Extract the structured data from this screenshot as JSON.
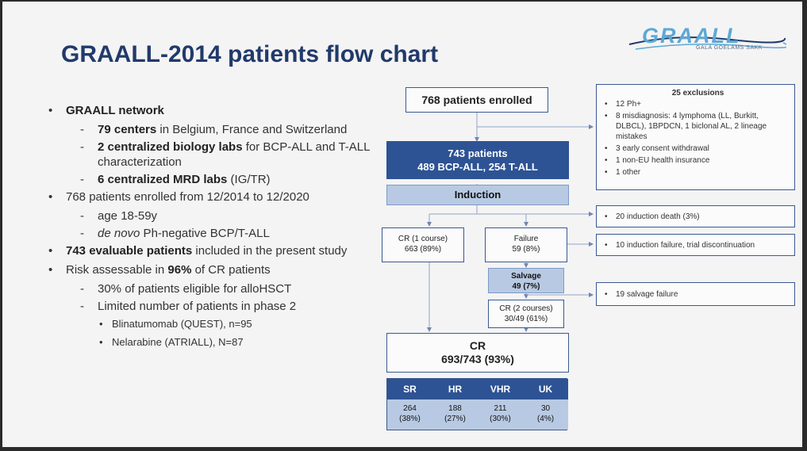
{
  "title": "GRAALL-2014 patients flow chart",
  "logo": {
    "name": "GRAALL",
    "subtitle": "GALA GOELAMS SAKK"
  },
  "bullets": [
    {
      "pre": "",
      "bold": "GRAALL network",
      "post": "",
      "children": [
        {
          "pre": "",
          "bold": "79 centers",
          "post": " in Belgium, France and Switzerland"
        },
        {
          "pre": "",
          "bold": "2 centralized biology labs",
          "post": " for BCP-ALL and T-ALL characterization"
        },
        {
          "pre": "",
          "bold": "6 centralized MRD labs",
          "post": " (IG/TR)"
        }
      ]
    },
    {
      "pre": "768 patients enrolled from 12/2014 to 12/2020",
      "bold": "",
      "post": "",
      "children": [
        {
          "pre": "age 18-59y",
          "bold": "",
          "post": ""
        },
        {
          "italic": "de novo",
          "post": " Ph-negative BCP/T-ALL"
        }
      ]
    },
    {
      "pre": "",
      "bold": "743 evaluable patients",
      "post": " included in the present study",
      "children": []
    },
    {
      "pre": "Risk assessable in ",
      "bold": "96%",
      "post": " of CR patients",
      "children": [
        {
          "pre": "30% of patients eligible for alloHSCT",
          "bold": "",
          "post": ""
        },
        {
          "pre": "Limited number of patients in phase 2",
          "bold": "",
          "post": "",
          "children": [
            "Blinatumomab (QUEST), n=95",
            "Nelarabine (ATRIALL), N=87"
          ]
        }
      ]
    }
  ],
  "flow": {
    "enrolled": "768 patients enrolled",
    "patients_line1": "743 patients",
    "patients_line2": "489 BCP-ALL, 254 T-ALL",
    "induction": "Induction",
    "cr1_line1": "CR (1 course)",
    "cr1_line2": "663 (89%)",
    "failure_line1": "Failure",
    "failure_line2": "59 (8%)",
    "salvage_line1": "Salvage",
    "salvage_line2": "49 (7%)",
    "cr2_line1": "CR (2 courses)",
    "cr2_line2": "30/49 (61%)",
    "cr_line1": "CR",
    "cr_line2": "693/743 (93%)"
  },
  "exclusions": {
    "title": "25 exclusions",
    "items": [
      "12 Ph+",
      "8 misdiagnosis: 4 lymphoma (LL, Burkitt, DLBCL), 1BPDCN, 1 biclonal AL, 2 lineage mistakes",
      "3 early consent withdrawal",
      "1 non-EU health insurance",
      "1 other"
    ]
  },
  "side_notes": {
    "induction_death": "20 induction death (3%)",
    "induction_failure": "10 induction failure, trial discontinuation",
    "salvage_failure": "19 salvage failure"
  },
  "risk_groups": [
    {
      "name": "SR",
      "count": "264",
      "pct": "(38%)"
    },
    {
      "name": "HR",
      "count": "188",
      "pct": "(27%)"
    },
    {
      "name": "VHR",
      "count": "211",
      "pct": "(30%)"
    },
    {
      "name": "UK",
      "count": "30",
      "pct": "(4%)"
    }
  ],
  "colors": {
    "title": "#213a6b",
    "dark_box": "#2d5394",
    "light_box": "#b8cae3",
    "logo": "#5da8d6"
  }
}
